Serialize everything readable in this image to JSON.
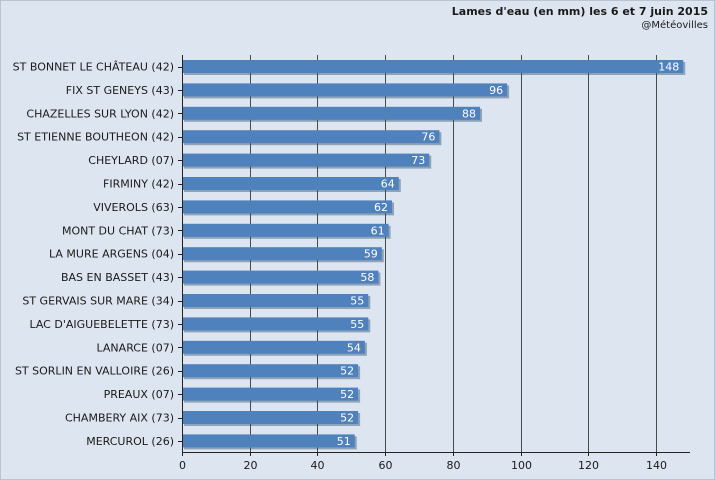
{
  "chart_data": {
    "type": "bar",
    "orientation": "horizontal",
    "title": "Lames d'eau (en mm) les 6 et 7 juin 2015",
    "subtitle": "@Météovilles",
    "xlabel": "",
    "ylabel": "",
    "xlim": [
      0,
      150
    ],
    "ticks": [
      0,
      20,
      40,
      60,
      80,
      100,
      120,
      140
    ],
    "grid": "vertical",
    "categories": [
      "ST BONNET LE CHÂTEAU (42)",
      "FIX ST GENEYS (43)",
      "CHAZELLES SUR LYON (42)",
      "ST ETIENNE BOUTHEON (42)",
      "CHEYLARD (07)",
      "FIRMINY (42)",
      "VIVEROLS (63)",
      "MONT DU CHAT (73)",
      "LA MURE ARGENS (04)",
      "BAS EN BASSET (43)",
      "ST GERVAIS SUR MARE (34)",
      "LAC D'AIGUEBELETTE (73)",
      "LANARCE (07)",
      "ST SORLIN EN VALLOIRE (26)",
      "PREAUX (07)",
      "CHAMBERY AIX (73)",
      "MERCUROL (26)"
    ],
    "values": [
      148,
      96,
      88,
      76,
      73,
      64,
      62,
      61,
      59,
      58,
      55,
      55,
      54,
      52,
      52,
      52,
      51
    ],
    "colors": {
      "bar": "#4f81bd",
      "bar_shadow": "#2f4f73",
      "background": "#dde6f0",
      "grid": "#4a4a4a"
    }
  }
}
